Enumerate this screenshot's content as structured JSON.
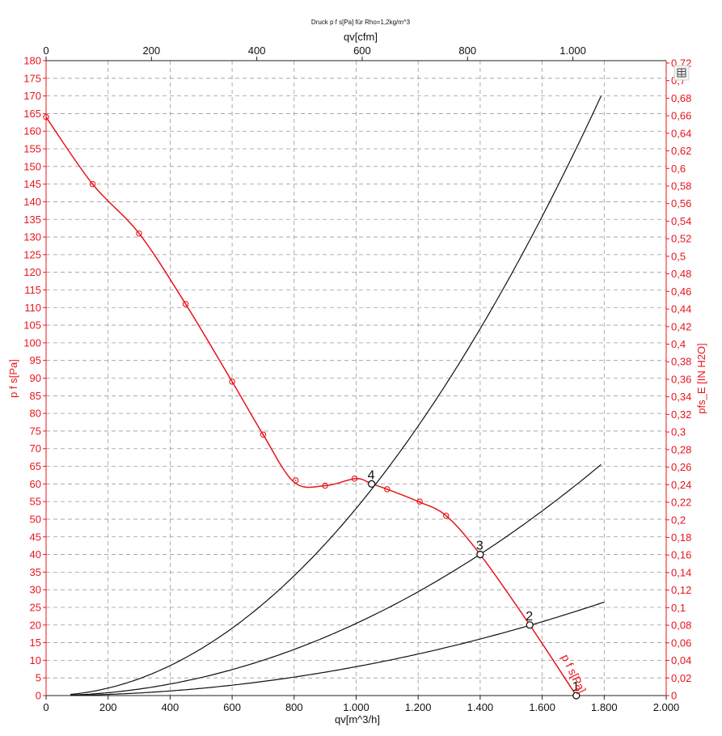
{
  "toolbar": {
    "icon": "table-icon"
  },
  "chart_data": {
    "type": "line",
    "title": "Druck p f s[Pa] für Rho=1,2kg/m^3",
    "xlabel": "qv[m^3/h]",
    "ylabel": "p f s[Pa]",
    "x2label": "qv[cfm]",
    "y2label": "pfs_E [IN H2O]",
    "xlim": [
      0,
      2000
    ],
    "ylim": [
      0,
      180
    ],
    "x2lim": [
      0,
      1177.2
    ],
    "y2lim": [
      0,
      0.7227
    ],
    "grid": true,
    "colors": {
      "fan_curve": "#e8141b",
      "system_curves": "#111111",
      "grid": "#9a9a9a"
    },
    "x_ticks": [
      "0",
      "200",
      "400",
      "600",
      "800",
      "1.000",
      "1.200",
      "1.400",
      "1.600",
      "1.800",
      "2.000"
    ],
    "x2_ticks": [
      "0",
      "200",
      "400",
      "600",
      "800",
      "1.000"
    ],
    "y_ticks": [
      "0",
      "5",
      "10",
      "15",
      "20",
      "25",
      "30",
      "35",
      "40",
      "45",
      "50",
      "55",
      "60",
      "65",
      "70",
      "75",
      "80",
      "85",
      "90",
      "95",
      "100",
      "105",
      "110",
      "115",
      "120",
      "125",
      "130",
      "135",
      "140",
      "145",
      "150",
      "155",
      "160",
      "165",
      "170",
      "175",
      "180"
    ],
    "y2_ticks": [
      "0",
      "0,02",
      "0,04",
      "0,06",
      "0,08",
      "0,1",
      "0,12",
      "0,14",
      "0,16",
      "0,18",
      "0,2",
      "0,22",
      "0,24",
      "0,26",
      "0,28",
      "0,3",
      "0,32",
      "0,34",
      "0,36",
      "0,38",
      "0,4",
      "0,42",
      "0,44",
      "0,46",
      "0,48",
      "0,5",
      "0,52",
      "0,54",
      "0,56",
      "0,58",
      "0,6",
      "0,62",
      "0,64",
      "0,66",
      "0,68",
      "0,7",
      "0,72"
    ],
    "series": [
      {
        "name": "p f s[Pa]",
        "x": [
          0,
          150,
          300,
          450,
          600,
          700,
          800,
          900,
          1000,
          1050,
          1100,
          1200,
          1290,
          1400,
          1560,
          1710
        ],
        "y": [
          164,
          145,
          131,
          111,
          89,
          74,
          60.5,
          59.5,
          61.5,
          60,
          58.5,
          55,
          51,
          40,
          20,
          0
        ],
        "markers": [
          {
            "x": 0,
            "y": 164
          },
          {
            "x": 150,
            "y": 145
          },
          {
            "x": 300,
            "y": 131
          },
          {
            "x": 450,
            "y": 111
          },
          {
            "x": 600,
            "y": 89
          },
          {
            "x": 700,
            "y": 74
          },
          {
            "x": 805,
            "y": 61
          },
          {
            "x": 900,
            "y": 59.5
          },
          {
            "x": 995,
            "y": 61.5
          },
          {
            "x": 1100,
            "y": 58.5
          },
          {
            "x": 1205,
            "y": 55
          },
          {
            "x": 1290,
            "y": 51
          }
        ]
      }
    ],
    "system_curves": [
      {
        "x_end": 1800,
        "y_end": 26.5
      },
      {
        "x_end": 1790,
        "y_end": 65.5
      },
      {
        "x_end": 1790,
        "y_end": 170
      }
    ],
    "operating_points": [
      {
        "label": "1",
        "x": 1710,
        "y": 0
      },
      {
        "label": "2",
        "x": 1560,
        "y": 20
      },
      {
        "label": "3",
        "x": 1400,
        "y": 40
      },
      {
        "label": "4",
        "x": 1050,
        "y": 60
      }
    ],
    "curve_label": "p f s[Pa]"
  }
}
